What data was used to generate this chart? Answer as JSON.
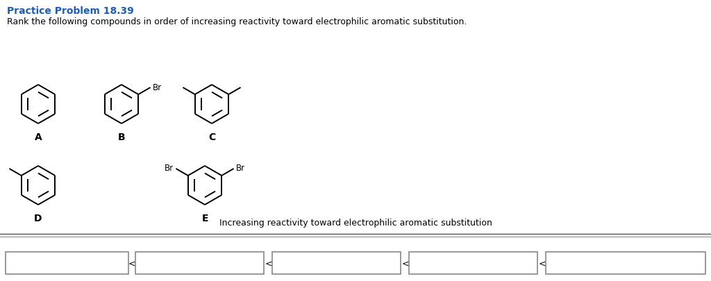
{
  "title": "Practice Problem 18.39",
  "subtitle": "Rank the following compounds in order of increasing reactivity toward electrophilic aromatic substitution.",
  "bottom_label": "Increasing reactivity toward electrophilic aromatic substitution",
  "title_color": "#1B5EBF",
  "bg_color": "#ffffff",
  "compound_labels": [
    "A",
    "B",
    "C",
    "D",
    "E"
  ],
  "box_border_color": "#888888",
  "figsize": [
    10.24,
    4.06
  ],
  "dpi": 100
}
